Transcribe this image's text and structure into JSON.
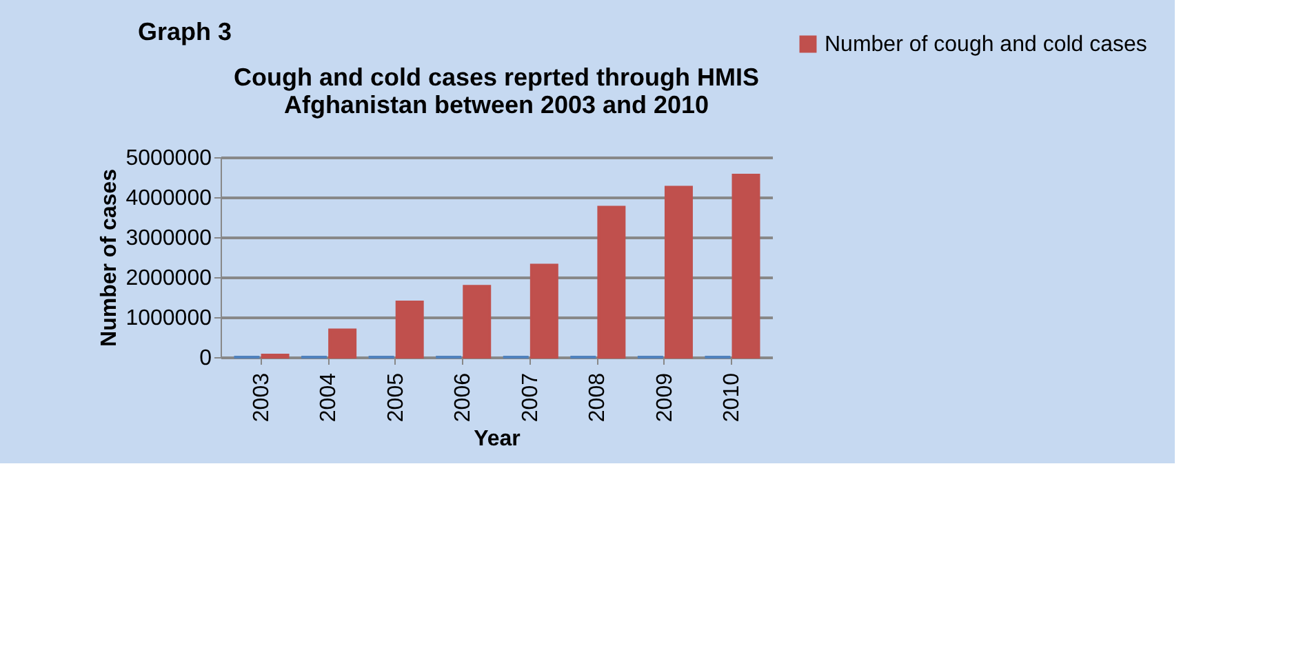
{
  "chart_data": {
    "type": "bar",
    "title": [
      "Cough and cold cases reprted through HMIS",
      "Afghanistan between 2003 and 2010"
    ],
    "xlabel": "Year",
    "ylabel": "Number of cases",
    "annotations": [
      "Graph 3"
    ],
    "categories": [
      "2003",
      "2004",
      "2005",
      "2006",
      "2007",
      "2008",
      "2009",
      "2010"
    ],
    "series": [
      {
        "color": "#4f81bd",
        "values": [
          0,
          0,
          0,
          0,
          0,
          0,
          0,
          0
        ]
      },
      {
        "name": "Number of cough and cold cases",
        "color": "#c0504d",
        "values": [
          50000,
          680000,
          1380000,
          1770000,
          2300000,
          3750000,
          4250000,
          4550000
        ]
      }
    ],
    "ylim": [
      0,
      5000000
    ],
    "yticks": [
      0,
      1000000,
      2000000,
      3000000,
      4000000,
      5000000
    ],
    "grid": "y",
    "legend": "right"
  }
}
